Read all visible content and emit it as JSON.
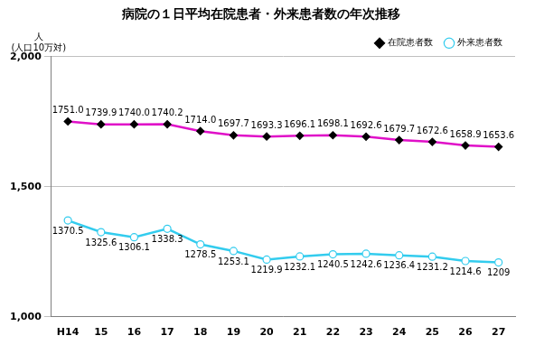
{
  "chart_data": {
    "type": "line",
    "title": "病院の１日平均在院患者・外来患者数の年次推移",
    "ylabel": [
      "人",
      "(人口10万対)"
    ],
    "categories": [
      "H14",
      "15",
      "16",
      "17",
      "18",
      "19",
      "20",
      "21",
      "22",
      "23",
      "24",
      "25",
      "26",
      "27"
    ],
    "series": [
      {
        "name": "在院患者数",
        "color": "#e010c8",
        "marker": "diamond",
        "values": [
          1751.0,
          1739.9,
          1740.0,
          1740.2,
          1714.0,
          1697.7,
          1693.3,
          1696.1,
          1698.1,
          1692.6,
          1679.7,
          1672.6,
          1658.9,
          1653.6
        ],
        "value_labels": [
          "1751.0",
          "1739.9",
          "1740.0",
          "1740.2",
          "1714.0",
          "1697.7",
          "1693.3",
          "1696.1",
          "1698.1",
          "1692.6",
          "1679.7",
          "1672.6",
          "1658.9",
          "1653.6"
        ]
      },
      {
        "name": "外来患者数",
        "color": "#33ccee",
        "marker": "circle",
        "values": [
          1370.5,
          1325.6,
          1306.1,
          1338.3,
          1278.5,
          1253.1,
          1219.9,
          1232.1,
          1240.5,
          1242.6,
          1236.4,
          1231.2,
          1214.6,
          1209
        ],
        "value_labels": [
          "1370.5",
          "1325.6",
          "1306.1",
          "1338.3",
          "1278.5",
          "1253.1",
          "1219.9",
          "1232.1",
          "1240.5",
          "1242.6",
          "1236.4",
          "1231.2",
          "1214.6",
          "1209"
        ]
      }
    ],
    "ylim": [
      1000,
      2000
    ],
    "yticks": [
      {
        "value": 1000,
        "label": "1,000"
      },
      {
        "value": 1500,
        "label": "1,500"
      },
      {
        "value": 2000,
        "label": "2,000"
      }
    ],
    "grid": true,
    "legend": "top-right",
    "data_labels": true
  }
}
